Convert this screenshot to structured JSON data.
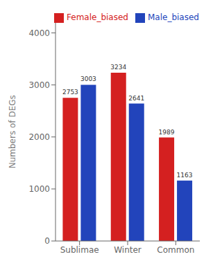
{
  "chart_data": {
    "type": "bar",
    "categories": [
      "Sublimae",
      "Winter",
      "Common"
    ],
    "series": [
      {
        "name": "Female_biased",
        "color": "#d42020",
        "values": [
          2753,
          3234,
          1989
        ]
      },
      {
        "name": "Male_biased",
        "color": "#2244bb",
        "values": [
          3003,
          2641,
          1163
        ]
      }
    ],
    "ylabel": "Numbers of DEGs",
    "ylim": [
      0,
      4200
    ],
    "yticks": [
      0,
      1000,
      2000,
      3000,
      4000
    ],
    "data_labels": true,
    "legend": "upper left",
    "grid": false
  }
}
